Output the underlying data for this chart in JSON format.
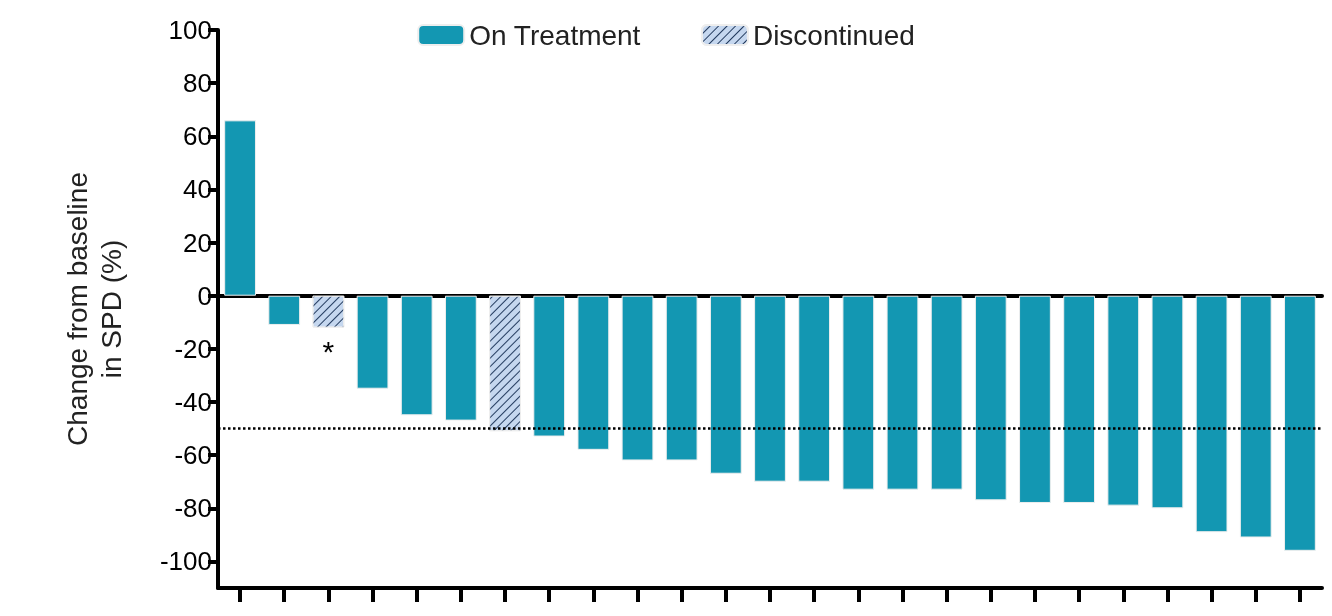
{
  "chart_data": {
    "type": "bar",
    "ylabel": "Change from baseline\nin SPD (%)",
    "categories": [
      null,
      null,
      null,
      null,
      null,
      null,
      null,
      null,
      null,
      null,
      null,
      null,
      null,
      null,
      null,
      null,
      null,
      null,
      null,
      null,
      null,
      null,
      null,
      null,
      null
    ],
    "series": [
      {
        "name": "On Treatment",
        "color": "#1397b2",
        "values": [
          66,
          -11,
          null,
          -35,
          -45,
          -47,
          null,
          -53,
          -58,
          -62,
          -62,
          -67,
          -70,
          -70,
          -73,
          -73,
          -73,
          -77,
          -78,
          -78,
          -79,
          -80,
          -89,
          -91,
          -96
        ]
      },
      {
        "name": "Discontinued",
        "color": "#c5d7ef",
        "values": [
          null,
          null,
          -12,
          null,
          null,
          null,
          -51,
          null,
          null,
          null,
          null,
          null,
          null,
          null,
          null,
          null,
          null,
          null,
          null,
          null,
          null,
          null,
          null,
          null,
          null
        ]
      }
    ],
    "ylim": [
      -110,
      100
    ],
    "yticks": [
      -100,
      -80,
      -60,
      -40,
      -20,
      0,
      20,
      40,
      60,
      80,
      100
    ],
    "ref_lines": [
      {
        "axis": "y",
        "value": -50,
        "line_style": "dotted",
        "color": "#000000"
      }
    ],
    "annotations": [
      "*"
    ],
    "legend": "top"
  }
}
